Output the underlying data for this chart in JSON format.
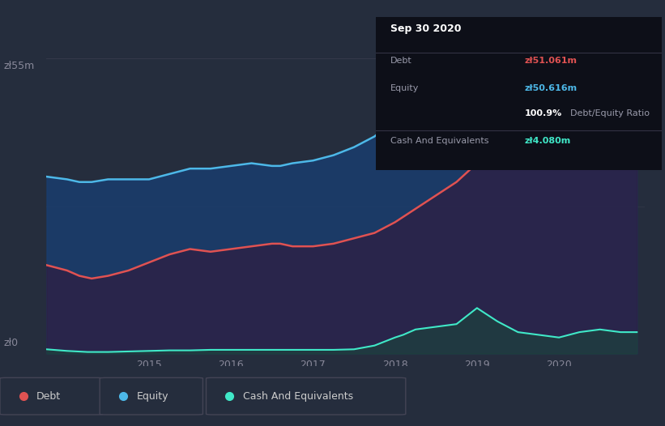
{
  "background_color": "#252d3d",
  "plot_bg_color": "#252d3d",
  "ylabel_top": "zł55m",
  "ylabel_bottom": "zł0",
  "debt_color": "#e05252",
  "equity_color": "#4db8e8",
  "cash_color": "#40e8c8",
  "annotation": {
    "title": "Sep 30 2020",
    "debt_label": "Debt",
    "debt_value": "zł51.061m",
    "equity_label": "Equity",
    "equity_value": "zł50.616m",
    "ratio": "100.9%",
    "ratio_label": "Debt/Equity Ratio",
    "cash_label": "Cash And Equivalents",
    "cash_value": "zł4.080m"
  },
  "legend": {
    "debt_label": "Debt",
    "equity_label": "Equity",
    "cash_label": "Cash And Equivalents"
  },
  "equity_x": [
    2013.75,
    2014.0,
    2014.15,
    2014.3,
    2014.5,
    2014.75,
    2015.0,
    2015.25,
    2015.5,
    2015.75,
    2016.0,
    2016.25,
    2016.5,
    2016.6,
    2016.75,
    2017.0,
    2017.25,
    2017.5,
    2017.75,
    2018.0,
    2018.25,
    2018.5,
    2018.75,
    2019.0,
    2019.1,
    2019.25,
    2019.5,
    2019.75,
    2020.0,
    2020.1,
    2020.25,
    2020.5,
    2020.75,
    2020.95
  ],
  "equity_y": [
    33.0,
    32.5,
    32.0,
    32.0,
    32.5,
    32.5,
    32.5,
    33.5,
    34.5,
    34.5,
    35.0,
    35.5,
    35.0,
    35.0,
    35.5,
    36.0,
    37.0,
    38.5,
    40.5,
    43.5,
    47.0,
    51.0,
    54.0,
    54.5,
    54.5,
    53.0,
    50.0,
    47.5,
    46.0,
    46.5,
    47.5,
    50.0,
    51.5,
    51.5
  ],
  "debt_x": [
    2013.75,
    2014.0,
    2014.15,
    2014.3,
    2014.5,
    2014.75,
    2015.0,
    2015.25,
    2015.5,
    2015.75,
    2016.0,
    2016.25,
    2016.5,
    2016.6,
    2016.75,
    2017.0,
    2017.25,
    2017.5,
    2017.75,
    2018.0,
    2018.25,
    2018.5,
    2018.75,
    2019.0,
    2019.1,
    2019.25,
    2019.5,
    2019.75,
    2020.0,
    2020.1,
    2020.25,
    2020.5,
    2020.75,
    2020.95
  ],
  "debt_y": [
    16.5,
    15.5,
    14.5,
    14.0,
    14.5,
    15.5,
    17.0,
    18.5,
    19.5,
    19.0,
    19.5,
    20.0,
    20.5,
    20.5,
    20.0,
    20.0,
    20.5,
    21.5,
    22.5,
    24.5,
    27.0,
    29.5,
    32.0,
    35.5,
    37.5,
    39.0,
    41.0,
    43.5,
    44.5,
    50.0,
    52.0,
    51.0,
    50.0,
    51.5
  ],
  "cash_x": [
    2013.75,
    2014.0,
    2014.25,
    2014.5,
    2014.75,
    2015.0,
    2015.25,
    2015.5,
    2015.75,
    2016.0,
    2016.25,
    2016.5,
    2016.75,
    2017.0,
    2017.25,
    2017.5,
    2017.75,
    2018.0,
    2018.1,
    2018.25,
    2018.5,
    2018.75,
    2019.0,
    2019.1,
    2019.25,
    2019.5,
    2019.75,
    2020.0,
    2020.25,
    2020.5,
    2020.75,
    2020.95
  ],
  "cash_y": [
    0.8,
    0.5,
    0.3,
    0.3,
    0.4,
    0.5,
    0.6,
    0.6,
    0.7,
    0.7,
    0.7,
    0.7,
    0.7,
    0.7,
    0.7,
    0.8,
    1.5,
    3.0,
    3.5,
    4.5,
    5.0,
    5.5,
    8.5,
    7.5,
    6.0,
    4.0,
    3.5,
    3.0,
    4.0,
    4.5,
    4.0,
    4.0
  ],
  "ylim": [
    0,
    58
  ],
  "xlim": [
    2013.75,
    2021.05
  ]
}
